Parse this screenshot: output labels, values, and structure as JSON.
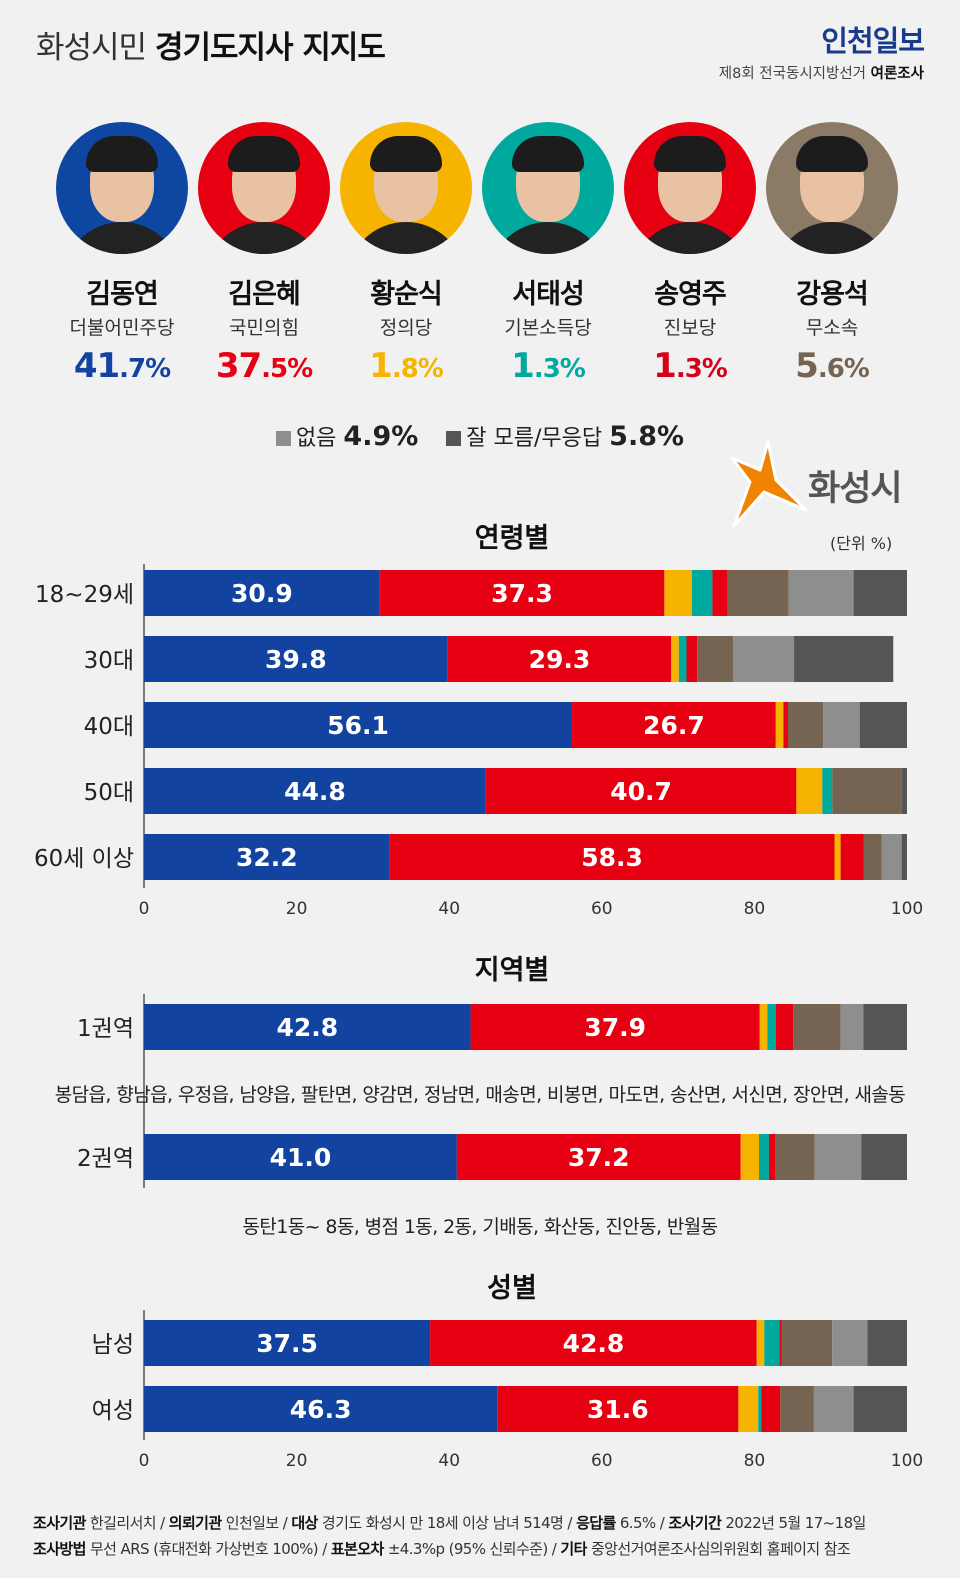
{
  "header": {
    "title_light": "화성시민",
    "title_bold": "경기도지사 지지도",
    "brand": "인천일보",
    "survey_label_prefix": "제8회 전국동시지방선거",
    "survey_label_bold": "여론조사"
  },
  "candidates": [
    {
      "name": "김동연",
      "party": "더불어민주당",
      "pct_int": "41",
      "pct_dec": ".7%",
      "color": "#1243a0",
      "ring": "#0d47a1"
    },
    {
      "name": "김은혜",
      "party": "국민의힘",
      "pct_int": "37",
      "pct_dec": ".5%",
      "color": "#e60012",
      "ring": "#e60012"
    },
    {
      "name": "황순식",
      "party": "정의당",
      "pct_int": "1",
      "pct_dec": ".8%",
      "color": "#f6b400",
      "ring": "#f6b400"
    },
    {
      "name": "서태성",
      "party": "기본소득당",
      "pct_int": "1",
      "pct_dec": ".3%",
      "color": "#00a99d",
      "ring": "#00a99d"
    },
    {
      "name": "송영주",
      "party": "진보당",
      "pct_int": "1",
      "pct_dec": ".3%",
      "color": "#d6001c",
      "ring": "#e60012"
    },
    {
      "name": "강용석",
      "party": "무소속",
      "pct_int": "5",
      "pct_dec": ".6%",
      "color": "#756451",
      "ring": "#8b7a66"
    }
  ],
  "extras": {
    "none_label": "없음",
    "none_value": "4.9%",
    "none_color": "#8e8e8e",
    "dk_label": "잘 모름/무응답",
    "dk_value": "5.8%",
    "dk_color": "#555555"
  },
  "city": {
    "name": "화성시",
    "unit": "(단위 %)"
  },
  "sections": {
    "age": "연령별",
    "region": "지역별",
    "gender": "성별"
  },
  "regions": {
    "region1_note": "봉담읍, 향남읍, 우정읍, 남양읍, 팔탄면, 양감면, 정남면, 매송면, 비봉면, 마도면, 송산면, 서신면, 장안면, 새솔동",
    "region2_note": "동탄1동~ 8동, 병점 1동, 2동, 기배동, 화산동, 진안동, 반월동"
  },
  "footer": {
    "line1": [
      {
        "k": "조사기관",
        "v": "한길리서치"
      },
      {
        "k": "의뢰기관",
        "v": "인천일보"
      },
      {
        "k": "대상",
        "v": "경기도 화성시 만 18세 이상 남녀 514명"
      },
      {
        "k": "응답률",
        "v": "6.5%"
      },
      {
        "k": "조사기간",
        "v": "2022년 5월 17~18일"
      }
    ],
    "line2": [
      {
        "k": "조사방법",
        "v": "무선 ARS (휴대전화 가상번호 100%)"
      },
      {
        "k": "표본오차",
        "v": "±4.3%p (95% 신뢰수준)"
      },
      {
        "k": "기타",
        "v": "중앙선거여론조사심의위원회 홈페이지 참조"
      }
    ]
  },
  "chart_data": [
    {
      "type": "bar",
      "stacked": true,
      "orientation": "horizontal",
      "title": "연령별",
      "categories": [
        "18~29세",
        "30대",
        "40대",
        "50대",
        "60세 이상"
      ],
      "series": [
        {
          "name": "김동연",
          "color": "#1243a0",
          "values": [
            30.9,
            39.8,
            56.1,
            44.8,
            32.2
          ]
        },
        {
          "name": "김은혜",
          "color": "#e60012",
          "values": [
            37.3,
            29.3,
            26.7,
            40.7,
            58.3
          ]
        },
        {
          "name": "황순식",
          "color": "#f6b400",
          "values": [
            3.6,
            1.0,
            1.0,
            3.4,
            0.8
          ]
        },
        {
          "name": "서태성",
          "color": "#00a99d",
          "values": [
            2.7,
            1.0,
            0.0,
            1.3,
            0.0
          ]
        },
        {
          "name": "송영주",
          "color": "#e60012",
          "values": [
            2.0,
            1.4,
            0.6,
            0.0,
            3.0
          ]
        },
        {
          "name": "강용석",
          "color": "#756451",
          "values": [
            8.0,
            4.7,
            4.6,
            9.1,
            2.4
          ]
        },
        {
          "name": "없음",
          "color": "#8e8e8e",
          "values": [
            8.5,
            8.0,
            4.8,
            0.0,
            2.6
          ]
        },
        {
          "name": "잘 모름/무응답",
          "color": "#555555",
          "values": [
            7.0,
            13.0,
            6.2,
            0.7,
            0.7
          ]
        }
      ],
      "labeled_series": [
        "김동연",
        "김은혜"
      ],
      "xlim": [
        0,
        100
      ],
      "xticks": [
        0,
        20,
        40,
        60,
        80,
        100
      ]
    },
    {
      "type": "bar",
      "stacked": true,
      "orientation": "horizontal",
      "title": "지역별",
      "categories": [
        "1권역",
        "2권역"
      ],
      "series": [
        {
          "name": "김동연",
          "color": "#1243a0",
          "values": [
            42.8,
            41.0
          ]
        },
        {
          "name": "김은혜",
          "color": "#e60012",
          "values": [
            37.9,
            37.2
          ]
        },
        {
          "name": "황순식",
          "color": "#f6b400",
          "values": [
            1.0,
            2.4
          ]
        },
        {
          "name": "서태성",
          "color": "#00a99d",
          "values": [
            1.1,
            1.3
          ]
        },
        {
          "name": "송영주",
          "color": "#e60012",
          "values": [
            2.3,
            0.8
          ]
        },
        {
          "name": "강용석",
          "color": "#756451",
          "values": [
            6.2,
            5.2
          ]
        },
        {
          "name": "없음",
          "color": "#8e8e8e",
          "values": [
            3.0,
            6.1
          ]
        },
        {
          "name": "잘 모름/무응답",
          "color": "#555555",
          "values": [
            5.7,
            6.0
          ]
        }
      ],
      "labeled_series": [
        "김동연",
        "김은혜"
      ],
      "xlim": [
        0,
        100
      ]
    },
    {
      "type": "bar",
      "stacked": true,
      "orientation": "horizontal",
      "title": "성별",
      "categories": [
        "남성",
        "여성"
      ],
      "series": [
        {
          "name": "김동연",
          "color": "#1243a0",
          "values": [
            37.5,
            46.3
          ]
        },
        {
          "name": "김은혜",
          "color": "#e60012",
          "values": [
            42.8,
            31.6
          ]
        },
        {
          "name": "황순식",
          "color": "#f6b400",
          "values": [
            1.0,
            2.6
          ]
        },
        {
          "name": "서태성",
          "color": "#00a99d",
          "values": [
            2.0,
            0.4
          ]
        },
        {
          "name": "송영주",
          "color": "#e60012",
          "values": [
            0.3,
            2.5
          ]
        },
        {
          "name": "강용석",
          "color": "#756451",
          "values": [
            6.6,
            4.4
          ]
        },
        {
          "name": "없음",
          "color": "#8e8e8e",
          "values": [
            4.6,
            5.2
          ]
        },
        {
          "name": "잘 모름/무응답",
          "color": "#555555",
          "values": [
            5.2,
            7.0
          ]
        }
      ],
      "labeled_series": [
        "김동연",
        "김은혜"
      ],
      "xlim": [
        0,
        100
      ],
      "xticks": [
        0,
        20,
        40,
        60,
        80,
        100
      ]
    }
  ]
}
